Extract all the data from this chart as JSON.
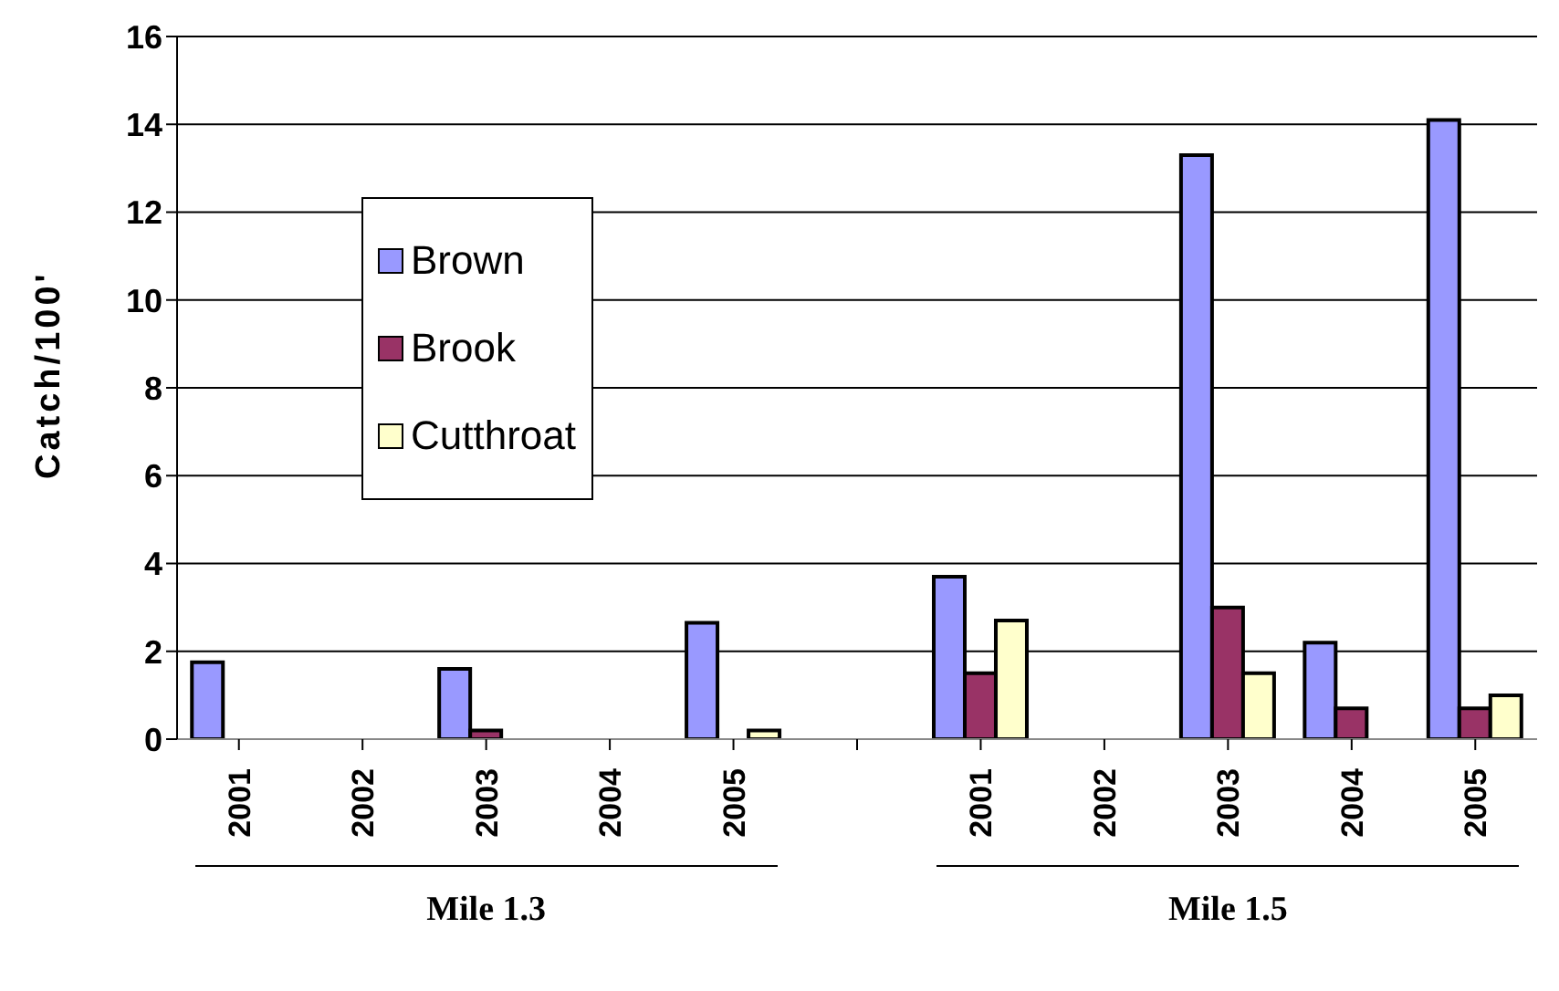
{
  "chart_data": {
    "type": "bar",
    "ylabel": "Catch/100'",
    "categories": [
      "2001",
      "2002",
      "2003",
      "2004",
      "2005",
      null,
      "2001",
      "2002",
      "2003",
      "2004",
      "2005"
    ],
    "series": [
      {
        "name": "Brown",
        "color": "#9999ff",
        "values": [
          1.75,
          0,
          1.6,
          0,
          2.65,
          null,
          3.7,
          0,
          13.3,
          2.2,
          14.1
        ]
      },
      {
        "name": "Brook",
        "color": "#993366",
        "values": [
          0,
          0,
          0.2,
          0,
          0,
          null,
          1.5,
          0,
          3.0,
          0.7,
          0.7
        ]
      },
      {
        "name": "Cutthroat",
        "color": "#ffffcc",
        "values": [
          0,
          0,
          0,
          0,
          0.2,
          null,
          2.7,
          0,
          1.5,
          0,
          1.0
        ]
      }
    ],
    "ylim": [
      0,
      16
    ],
    "yticks": [
      0,
      2,
      4,
      6,
      8,
      10,
      12,
      14,
      16
    ],
    "grid": "y",
    "legend": "left",
    "annotations": [
      "Mile 1.3",
      "Mile 1.5"
    ]
  }
}
